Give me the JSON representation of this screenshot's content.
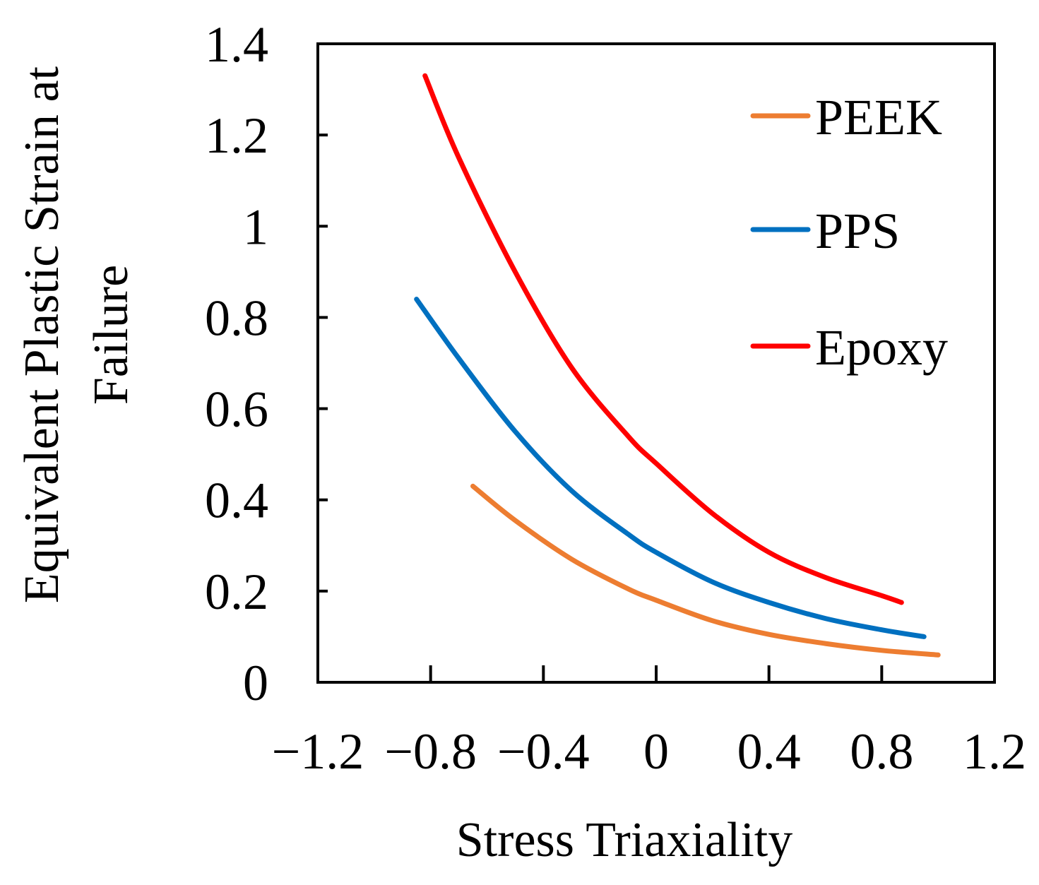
{
  "chart_data": {
    "type": "line",
    "title": "",
    "xlabel": "Stress Triaxiality",
    "ylabel_lines": [
      "Equivalent Plastic Strain at",
      "Failure"
    ],
    "xlim": [
      -1.2,
      1.2
    ],
    "ylim": [
      0,
      1.4
    ],
    "grid": false,
    "legend_position": "top-right",
    "x_ticks": [
      -1.2,
      -0.8,
      -0.4,
      0,
      0.4,
      0.8,
      1.2
    ],
    "x_tick_labels": [
      "−1.2",
      "−0.8",
      "−0.4",
      "0",
      "0.4",
      "0.8",
      "1.2"
    ],
    "y_ticks": [
      0,
      0.2,
      0.4,
      0.6,
      0.8,
      1,
      1.2,
      1.4
    ],
    "y_tick_labels": [
      "0",
      "0.2",
      "0.4",
      "0.6",
      "0.8",
      "1",
      "1.2",
      "1.4"
    ],
    "series": [
      {
        "name": "PEEK",
        "color": "#ED7D31",
        "x": [
          -0.65,
          -0.5,
          -0.3,
          -0.1,
          0.0,
          0.2,
          0.4,
          0.6,
          0.8,
          1.0
        ],
        "y": [
          0.43,
          0.355,
          0.27,
          0.205,
          0.18,
          0.135,
          0.105,
          0.085,
          0.07,
          0.06
        ]
      },
      {
        "name": "PPS",
        "color": "#0070C0",
        "x": [
          -0.85,
          -0.7,
          -0.5,
          -0.3,
          -0.1,
          0.0,
          0.2,
          0.4,
          0.6,
          0.8,
          0.95
        ],
        "y": [
          0.84,
          0.71,
          0.55,
          0.42,
          0.325,
          0.285,
          0.22,
          0.175,
          0.14,
          0.115,
          0.1
        ]
      },
      {
        "name": "Epoxy",
        "color": "#FF0000",
        "x": [
          -0.82,
          -0.7,
          -0.5,
          -0.3,
          -0.1,
          0.0,
          0.2,
          0.4,
          0.6,
          0.8,
          0.87
        ],
        "y": [
          1.33,
          1.15,
          0.9,
          0.69,
          0.54,
          0.48,
          0.37,
          0.285,
          0.23,
          0.19,
          0.175
        ]
      }
    ]
  }
}
